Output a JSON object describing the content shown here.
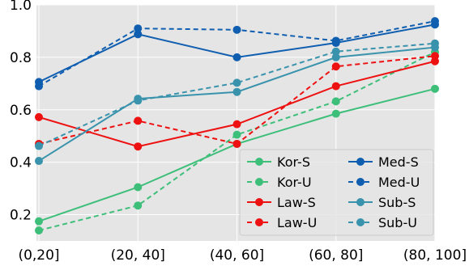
{
  "chart_data": {
    "type": "line",
    "categories": [
      "(0,20]",
      "(20, 40]",
      "(40, 60]",
      "(60, 80]",
      "(80, 100]"
    ],
    "ylim": [
      0.1,
      1.0
    ],
    "yticks": [
      "0.2",
      "0.4",
      "0.6",
      "0.8",
      "1.0"
    ],
    "ytick_values": [
      0.2,
      0.4,
      0.6,
      0.8,
      1.0
    ],
    "grid": true,
    "legend_position": "bottom-right",
    "series": [
      {
        "name": "Kor-S",
        "color": "#3dbf7a",
        "dashed": false,
        "values": [
          0.175,
          0.305,
          0.47,
          0.585,
          0.68
        ]
      },
      {
        "name": "Kor-U",
        "color": "#3dbf7a",
        "dashed": true,
        "values": [
          0.14,
          0.235,
          0.505,
          0.632,
          0.82
        ]
      },
      {
        "name": "Law-S",
        "color": "#ee1111",
        "dashed": false,
        "values": [
          0.572,
          0.46,
          0.545,
          0.69,
          0.785
        ]
      },
      {
        "name": "Law-U",
        "color": "#ee1111",
        "dashed": true,
        "values": [
          0.47,
          0.558,
          0.47,
          0.765,
          0.805
        ]
      },
      {
        "name": "Med-S",
        "color": "#0f5eb0",
        "dashed": false,
        "values": [
          0.706,
          0.888,
          0.8,
          0.855,
          0.925
        ]
      },
      {
        "name": "Med-U",
        "color": "#0f5eb0",
        "dashed": true,
        "values": [
          0.69,
          0.91,
          0.905,
          0.863,
          0.938
        ]
      },
      {
        "name": "Sub-S",
        "color": "#3a93ad",
        "dashed": false,
        "values": [
          0.405,
          0.642,
          0.668,
          0.8,
          0.838
        ]
      },
      {
        "name": "Sub-U",
        "color": "#3a93ad",
        "dashed": true,
        "values": [
          0.462,
          0.635,
          0.703,
          0.822,
          0.853
        ]
      }
    ]
  }
}
